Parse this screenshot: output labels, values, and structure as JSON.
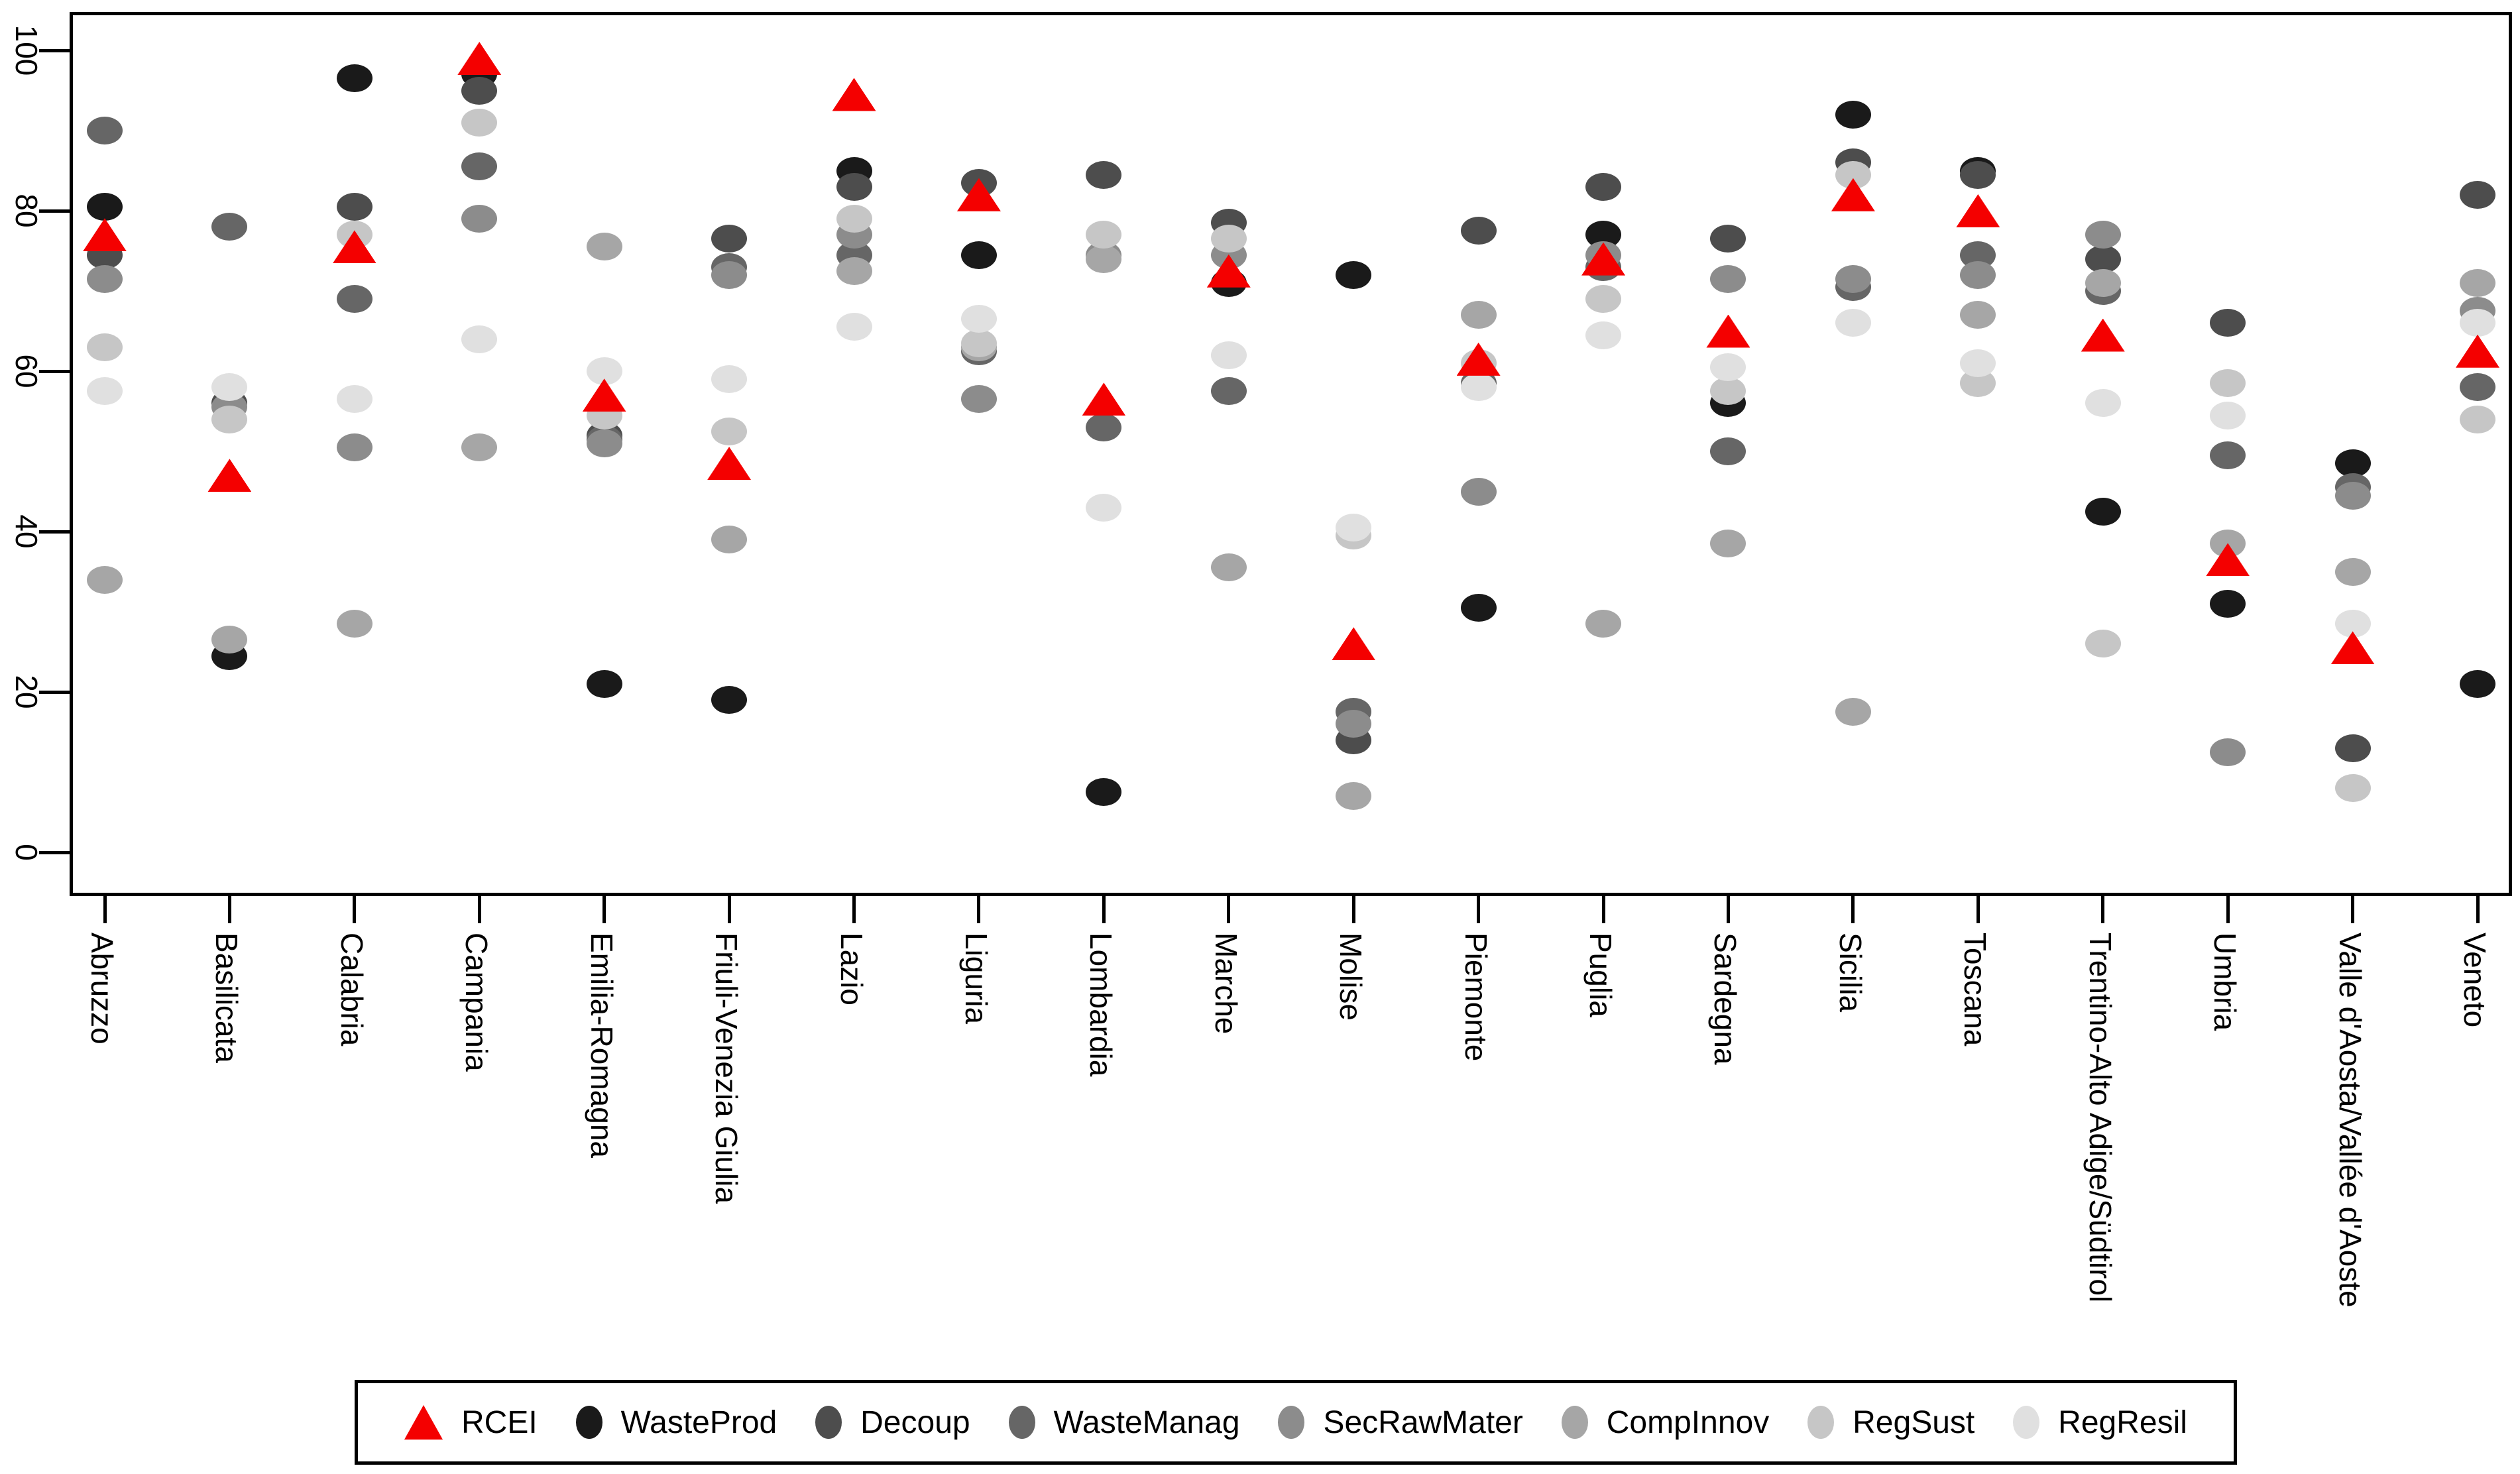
{
  "chart_data": {
    "type": "scatter",
    "title": "",
    "xlabel": "",
    "ylabel": "",
    "ylim": [
      0,
      100
    ],
    "yticks": [
      "0",
      "20",
      "40",
      "60",
      "80",
      "100"
    ],
    "grid": false,
    "legend_position": "bottom",
    "categories": [
      "Abruzzo",
      "Basilicata",
      "Calabria",
      "Campania",
      "Emilia-Romagna",
      "Friuli-Venezia Giulia",
      "Lazio",
      "Liguria",
      "Lombardia",
      "Marche",
      "Molise",
      "Piemonte",
      "Puglia",
      "Sardegna",
      "Sicilia",
      "Toscana",
      "Trentino-Alto Adige/Südtirol",
      "Umbria",
      "Valle d'Aosta/Vallée d'Aoste",
      "Veneto"
    ],
    "series": [
      {
        "name": "WasteProd",
        "marker": "circle",
        "color": "#1a1a1a",
        "values": [
          80.5,
          24.5,
          96.5,
          97,
          21,
          19,
          85,
          74.5,
          7.5,
          71,
          72,
          30.5,
          77,
          56,
          92,
          85,
          42.5,
          31,
          48.5,
          21
        ]
      },
      {
        "name": "Decoup",
        "marker": "circle",
        "color": "#4d4d4d",
        "values": [
          74.5,
          56,
          80.5,
          95,
          52,
          76.5,
          83,
          83.5,
          84.5,
          78.5,
          14,
          77.5,
          83,
          76.5,
          86,
          84.5,
          74,
          66,
          13,
          82
        ]
      },
      {
        "name": "WasteManag",
        "marker": "circle",
        "color": "#666666",
        "values": [
          90,
          78,
          69,
          85.5,
          51.5,
          73,
          74.5,
          62.5,
          53,
          57.5,
          17.5,
          58.5,
          73,
          50,
          70.5,
          74.5,
          70,
          49.5,
          45.5,
          58
        ]
      },
      {
        "name": "SecRawMater",
        "marker": "circle",
        "color": "#8c8c8c",
        "values": [
          71.5,
          55.5,
          50.5,
          79,
          51,
          72,
          77,
          56.5,
          74.5,
          74.5,
          16,
          45,
          74.5,
          71.5,
          71.5,
          72,
          77,
          12.5,
          44.5,
          67.5
        ]
      },
      {
        "name": "CompInnov",
        "marker": "circle",
        "color": "#a6a6a6",
        "values": [
          34,
          26.5,
          28.5,
          50.5,
          75.5,
          39,
          72.5,
          63,
          74,
          35.5,
          7,
          67,
          28.5,
          38.5,
          17.5,
          67,
          71,
          38.5,
          35,
          71
        ]
      },
      {
        "name": "RegSust",
        "marker": "circle",
        "color": "#c6c6c6",
        "values": [
          63,
          54,
          77,
          91,
          54.5,
          52.5,
          79,
          63.5,
          77,
          76.5,
          39.5,
          61,
          69,
          57.5,
          84.5,
          58.5,
          26,
          58.5,
          8,
          54
        ]
      },
      {
        "name": "RegResil",
        "marker": "circle",
        "color": "#e0e0e0",
        "values": [
          57.5,
          58,
          56.5,
          64,
          60,
          59,
          65.5,
          66.5,
          43,
          62,
          40.5,
          58,
          64.5,
          60.5,
          66,
          61,
          56,
          54.5,
          28.5,
          66
        ]
      },
      {
        "name": "RCEI",
        "marker": "triangle",
        "color": "#f40000",
        "values": [
          77,
          47,
          75.5,
          99,
          57,
          48.5,
          94.5,
          82,
          56.5,
          72.5,
          26,
          61.5,
          74,
          65,
          82,
          80,
          64.5,
          36.5,
          25.5,
          62.5
        ]
      }
    ],
    "legend_order": [
      "RCEI",
      "WasteProd",
      "Decoup",
      "WasteManag",
      "SecRawMater",
      "CompInnov",
      "RegSust",
      "RegResil"
    ]
  }
}
